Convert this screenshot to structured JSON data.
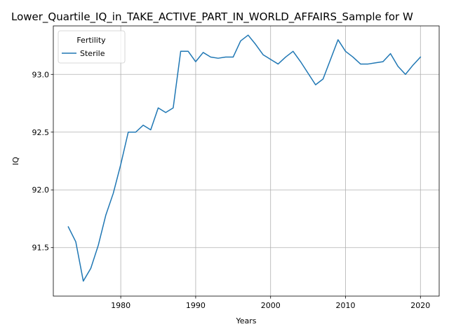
{
  "chart_data": {
    "type": "line",
    "title": "Lower_Quartile_IQ_in_TAKE_ACTIVE_PART_IN_WORLD_AFFAIRS_Sample for W",
    "xlabel": "Years",
    "ylabel": "IQ",
    "xlim": [
      1971,
      2022.5
    ],
    "ylim": [
      91.08,
      93.42
    ],
    "x_ticks": [
      1980,
      1990,
      2000,
      2010,
      2020
    ],
    "y_ticks": [
      91.5,
      92.0,
      92.5,
      93.0
    ],
    "y_tick_labels": [
      "91.5",
      "92.0",
      "92.5",
      "93.0"
    ],
    "grid": true,
    "legend": {
      "title": "Fertility",
      "position": "upper-left"
    },
    "series": [
      {
        "name": "Sterile",
        "color": "#1f77b4",
        "x": [
          1973,
          1974,
          1975,
          1976,
          1977,
          1978,
          1979,
          1980,
          1981,
          1982,
          1983,
          1984,
          1985,
          1986,
          1987,
          1988,
          1989,
          1990,
          1991,
          1992,
          1993,
          1994,
          1995,
          1996,
          1997,
          1998,
          1999,
          2000,
          2001,
          2002,
          2003,
          2004,
          2005,
          2006,
          2007,
          2008,
          2009,
          2010,
          2011,
          2012,
          2013,
          2014,
          2015,
          2016,
          2017,
          2018,
          2019,
          2020
        ],
        "y": [
          91.68,
          91.55,
          91.21,
          91.32,
          91.52,
          91.78,
          91.97,
          92.22,
          92.5,
          92.5,
          92.56,
          92.52,
          92.71,
          92.67,
          92.71,
          93.2,
          93.2,
          93.11,
          93.19,
          93.15,
          93.14,
          93.15,
          93.15,
          93.29,
          93.34,
          93.26,
          93.17,
          93.13,
          93.09,
          93.15,
          93.2,
          93.11,
          93.01,
          92.91,
          92.96,
          93.13,
          93.3,
          93.2,
          93.15,
          93.09,
          93.09,
          93.1,
          93.11,
          93.18,
          93.07,
          93.0,
          93.08,
          93.15
        ]
      }
    ]
  }
}
